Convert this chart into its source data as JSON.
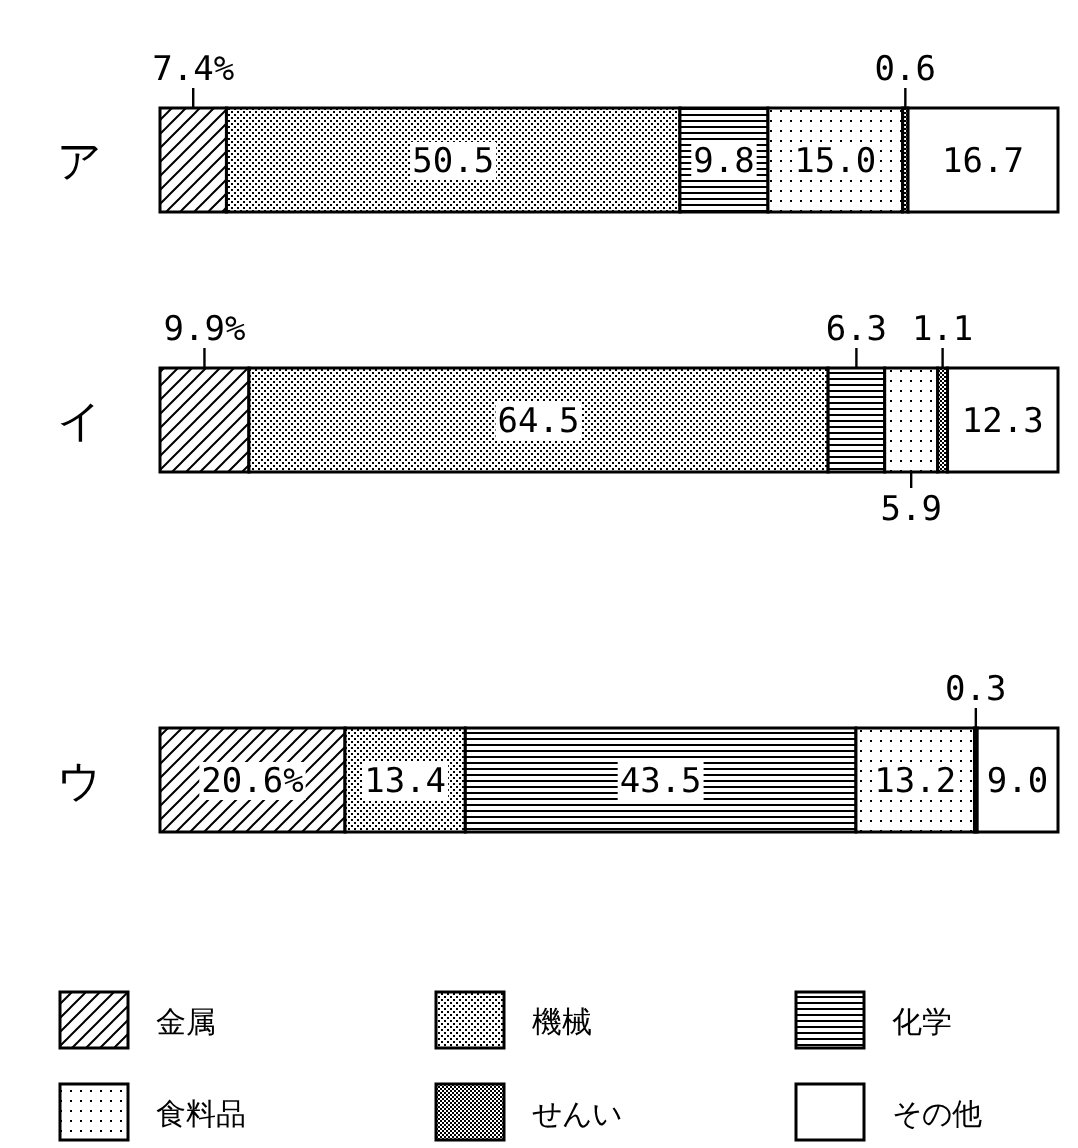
{
  "chart_data": {
    "type": "bar",
    "orientation": "horizontal",
    "stacked": true,
    "legend": "bottom",
    "categories": [
      "ア",
      "イ",
      "ウ"
    ],
    "series": [
      {
        "name": "金属",
        "color": "#000000",
        "values": [
          7.4,
          9.9,
          20.6
        ],
        "value_labels": [
          "7.4%",
          "9.9%",
          "20.6%"
        ]
      },
      {
        "name": "機械",
        "color": "#000000",
        "values": [
          50.5,
          64.5,
          13.4
        ],
        "value_labels": [
          "50.5",
          "64.5",
          "13.4"
        ]
      },
      {
        "name": "化学",
        "color": "#000000",
        "values": [
          9.8,
          6.3,
          43.5
        ],
        "value_labels": [
          "9.8",
          "6.3",
          "43.5"
        ]
      },
      {
        "name": "食料品",
        "color": "#000000",
        "values": [
          15.0,
          5.9,
          13.2
        ],
        "value_labels": [
          "15.0",
          "5.9",
          "13.2"
        ]
      },
      {
        "name": "せんい",
        "color": "#000000",
        "values": [
          0.6,
          1.1,
          0.3
        ],
        "value_labels": [
          "0.6",
          "1.1",
          "0.3"
        ]
      },
      {
        "name": "その他",
        "color": "#ffffff",
        "values": [
          16.7,
          12.3,
          9.0
        ],
        "value_labels": [
          "16.7",
          "12.3",
          "9.0"
        ]
      }
    ]
  }
}
